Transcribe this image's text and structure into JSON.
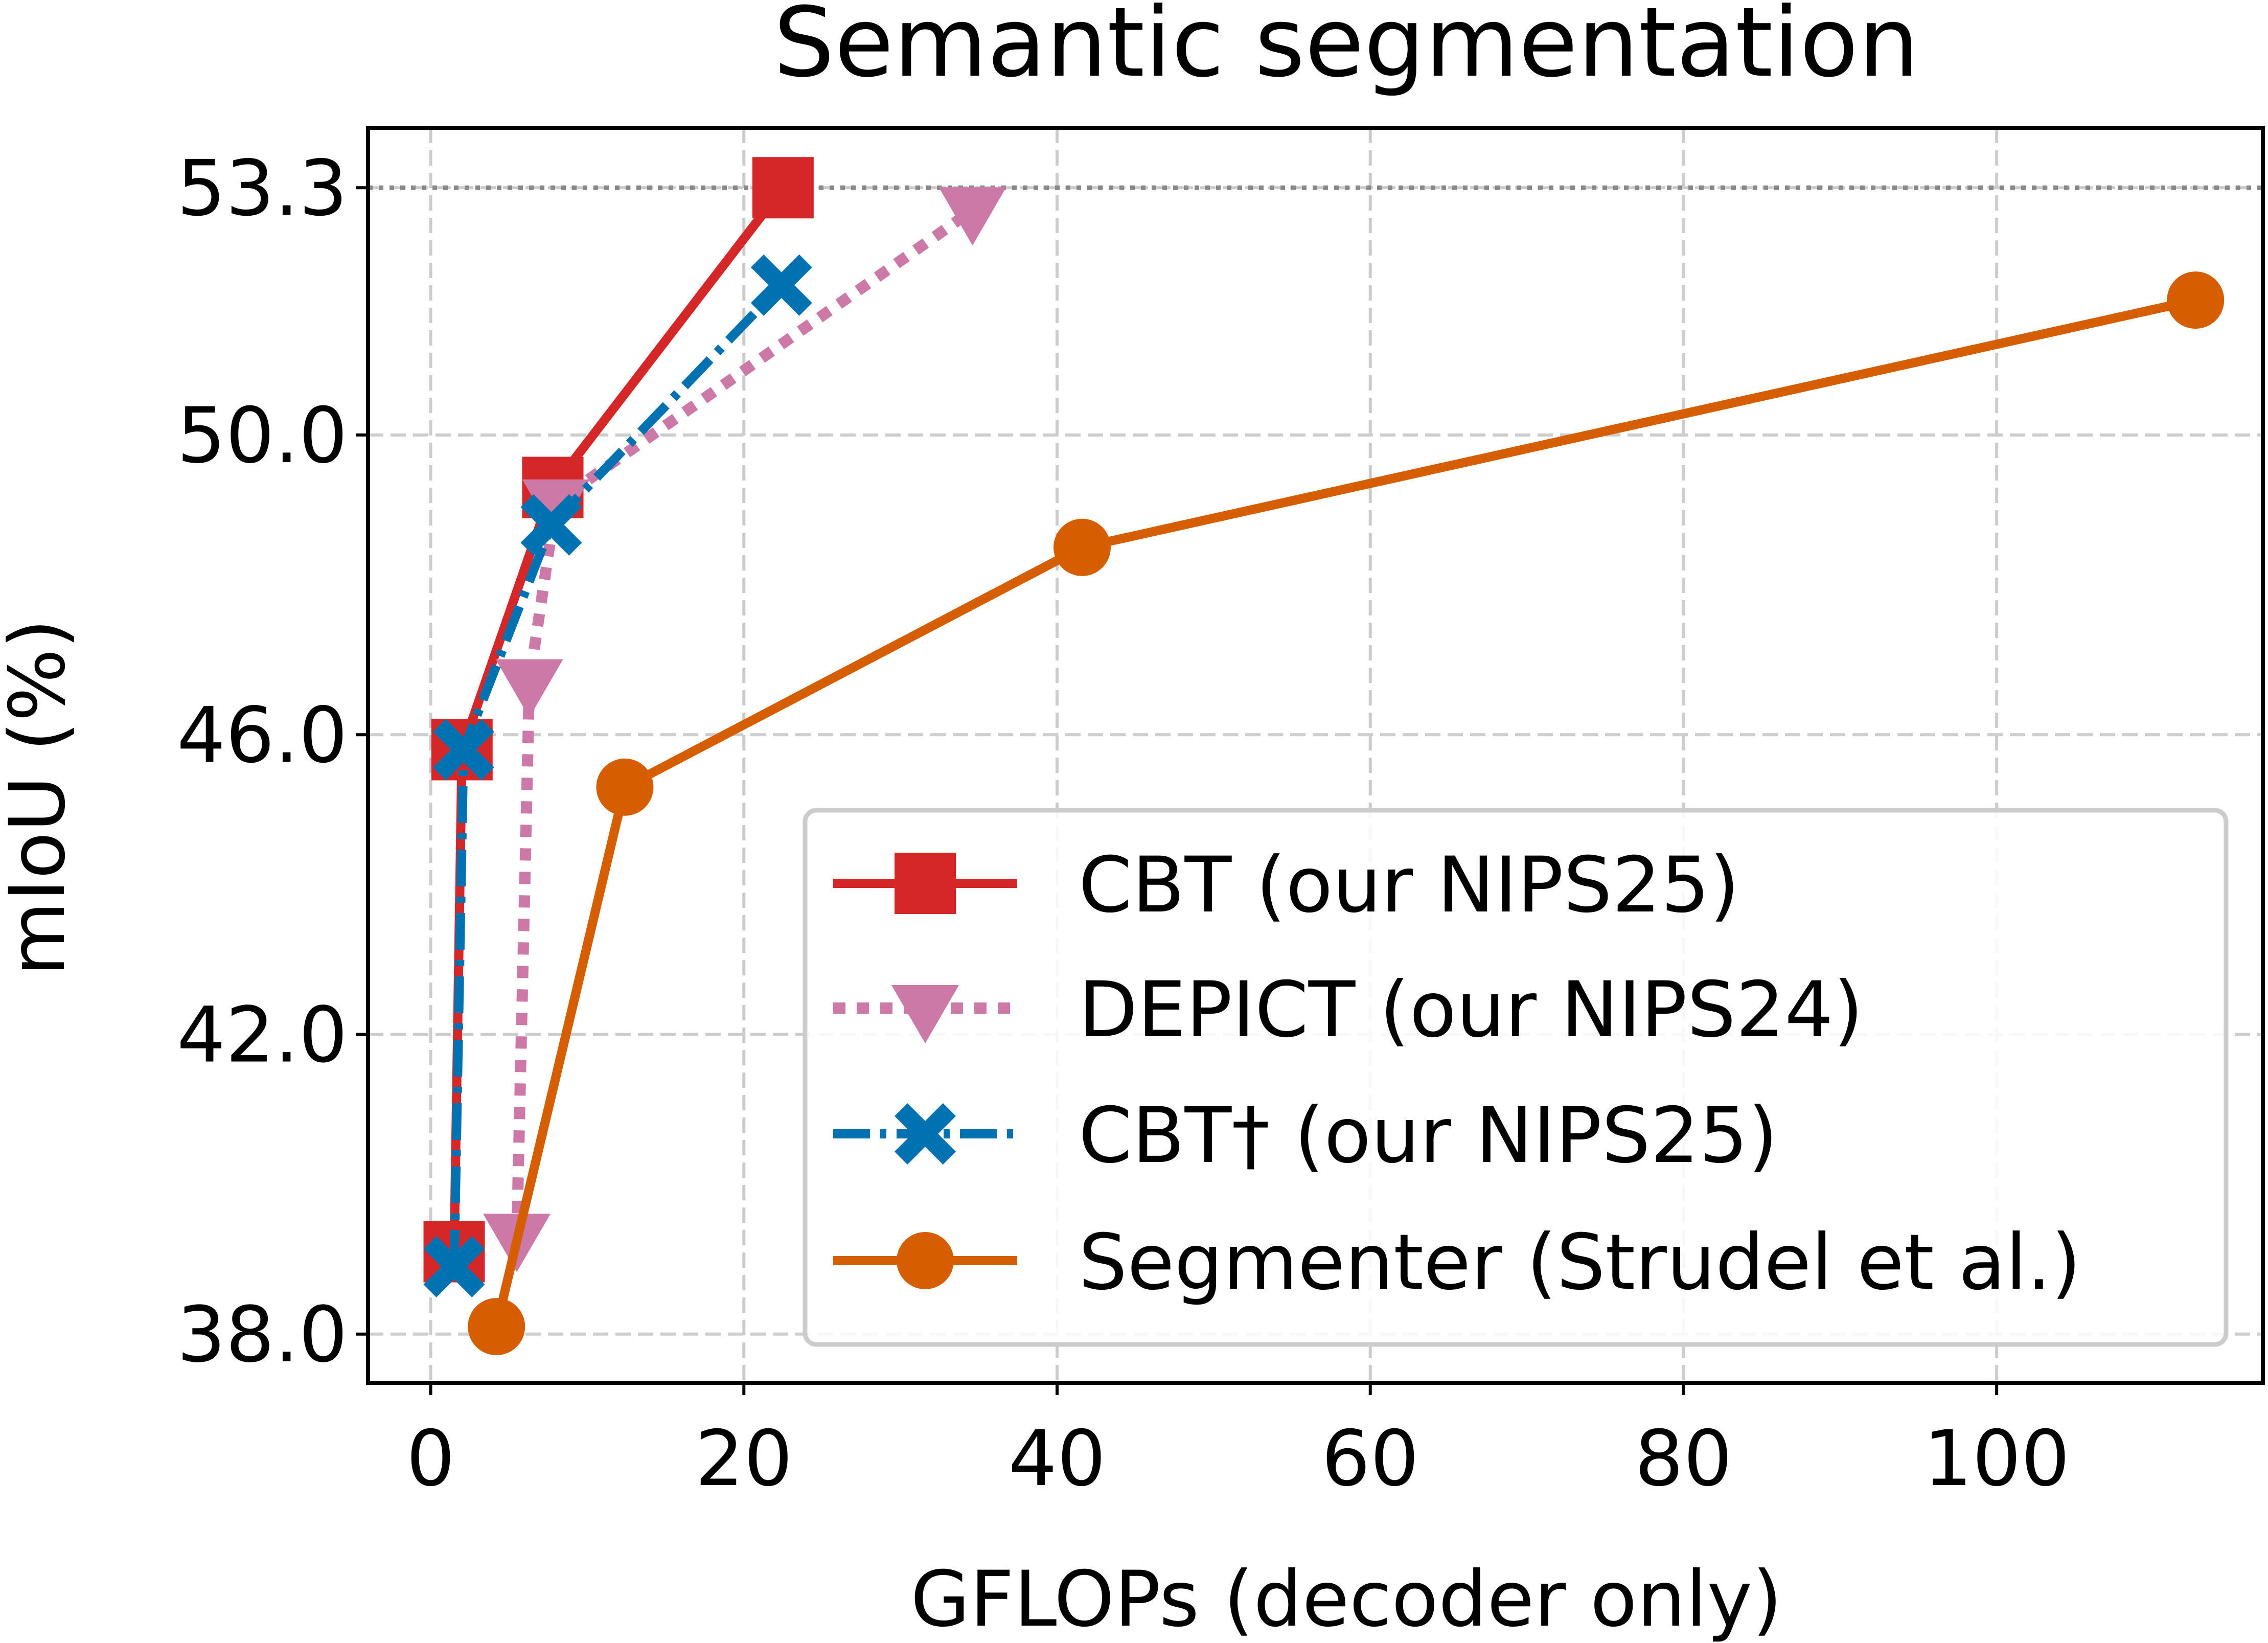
{
  "chart_data": {
    "type": "line",
    "title": "Semantic segmentation",
    "xlabel": "GFLOPs (decoder only)",
    "ylabel": "mIoU (%)",
    "xlim": [
      -4,
      117
    ],
    "ylim": [
      37.35,
      54.1
    ],
    "x_ticks": [
      0,
      20,
      40,
      60,
      80,
      100
    ],
    "x_tick_labels": [
      "0",
      "20",
      "40",
      "60",
      "80",
      "100"
    ],
    "y_ticks": [
      38.0,
      42.0,
      46.0,
      50.0,
      53.3
    ],
    "y_tick_labels": [
      "38.0",
      "42.0",
      "46.0",
      "50.0",
      "53.3"
    ],
    "grid": true,
    "reference_line": {
      "y": 53.3,
      "style": "dotted",
      "color": "#888888"
    },
    "legend": {
      "position": "lower-right"
    },
    "series": [
      {
        "name": "CBT (our NIPS25)",
        "color": "#d62728",
        "marker": "square",
        "line_style": "solid",
        "points": [
          {
            "x": 1.5,
            "y": 39.1
          },
          {
            "x": 2.0,
            "y": 45.8
          },
          {
            "x": 7.8,
            "y": 49.3
          },
          {
            "x": 22.5,
            "y": 53.3
          }
        ]
      },
      {
        "name": "DEPICT (our NIPS24)",
        "color": "#cc79a7",
        "marker": "triangle-down",
        "line_style": "dotted",
        "points": [
          {
            "x": 5.5,
            "y": 39.3
          },
          {
            "x": 6.3,
            "y": 46.7
          },
          {
            "x": 8.0,
            "y": 49.1
          },
          {
            "x": 34.6,
            "y": 53.0
          }
        ]
      },
      {
        "name": "CBT† (our NIPS25)",
        "color": "#0072b2",
        "marker": "x-filled",
        "line_style": "dashdot",
        "points": [
          {
            "x": 1.5,
            "y": 38.9
          },
          {
            "x": 2.1,
            "y": 45.8
          },
          {
            "x": 7.7,
            "y": 48.8
          },
          {
            "x": 22.4,
            "y": 52.0
          }
        ]
      },
      {
        "name": "Segmenter (Strudel et al.)",
        "color": "#d55e00",
        "marker": "circle",
        "line_style": "solid",
        "points": [
          {
            "x": 4.2,
            "y": 38.1
          },
          {
            "x": 12.4,
            "y": 45.3
          },
          {
            "x": 41.6,
            "y": 48.5
          },
          {
            "x": 112.7,
            "y": 51.8
          }
        ]
      }
    ]
  }
}
